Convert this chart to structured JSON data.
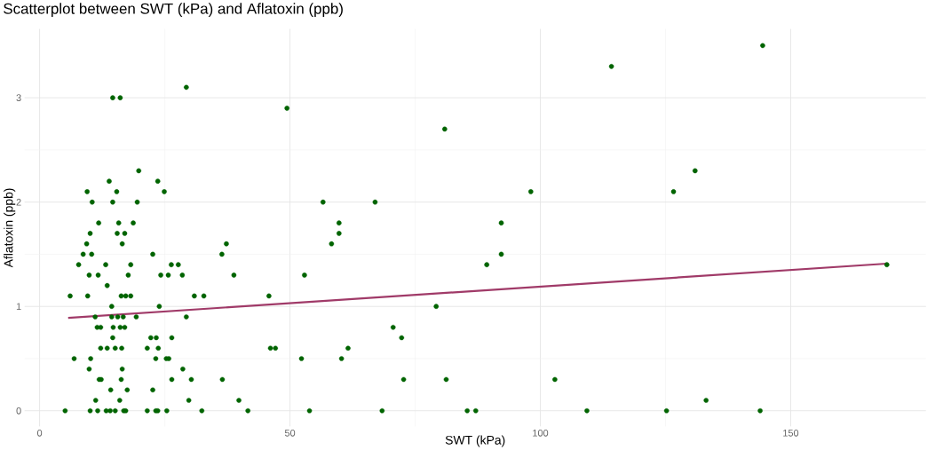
{
  "chart_data": {
    "type": "scatter",
    "title": "Scatterplot between SWT (kPa) and Aflatoxin (ppb)",
    "xlabel": "SWT (kPa)",
    "ylabel": "Aflatoxin (ppb)",
    "xlim": [
      -3,
      177
    ],
    "ylim": [
      -0.15,
      3.66
    ],
    "xticks": [
      0,
      50,
      100,
      150
    ],
    "yticks": [
      0,
      1,
      2,
      3
    ],
    "grid": true,
    "series": [
      {
        "marker": "circle",
        "color": "#006400",
        "x": [
          19.8,
          13.9,
          23.6,
          9.5,
          15.4,
          24.9,
          10.5,
          14.6,
          19.5,
          11.8,
          15.8,
          18.7,
          10.1,
          15.5,
          17.0,
          9.4,
          16.5,
          8.7,
          10.4,
          22.6,
          7.8,
          13.2,
          18.2,
          26.3,
          27.7,
          9.9,
          11.7,
          17.7,
          24.2,
          25.7,
          28.5,
          13.5,
          6.1,
          9.6,
          16.3,
          17.2,
          18.2,
          30.9,
          32.8,
          14.4,
          23.9,
          11.1,
          14.4,
          15.6,
          16.7,
          19.3,
          29.3,
          11.5,
          12.2,
          14.7,
          16.1,
          17.0,
          14.6,
          22.2,
          23.3,
          26.4,
          12.2,
          13.5,
          15.1,
          16.4,
          21.5,
          23.7,
          6.9,
          10.2,
          23.2,
          25.3,
          25.8,
          9.9,
          16.5,
          28.6,
          11.9,
          12.3,
          16.3,
          26.4,
          30.3,
          14.2,
          17.5,
          22.6,
          11.2,
          16.0,
          29.8,
          5.1,
          10.1,
          11.6,
          13.3,
          14.1,
          15.1,
          16.8,
          17.2,
          21.5,
          23.2,
          23.6,
          25.4,
          32.4,
          14.6,
          16.1,
          29.3,
          49.4,
          80.9,
          56.6,
          67.0,
          59.8,
          59.8,
          58.3,
          37.3,
          36.4,
          38.8,
          52.9,
          45.8,
          79.2,
          70.6,
          72.3,
          46.1,
          47.1,
          61.6,
          52.3,
          60.3,
          36.5,
          72.7,
          81.2,
          39.8,
          41.6,
          53.9,
          68.4,
          144.4,
          114.2,
          130.9,
          98.1,
          126.6,
          92.2,
          92.2,
          89.3,
          169.2,
          102.9,
          85.4,
          87.1,
          109.3,
          125.2,
          133.1,
          143.9
        ],
        "values": [
          2.3,
          2.2,
          2.2,
          2.1,
          2.1,
          2.1,
          2.0,
          2.0,
          2.0,
          1.8,
          1.8,
          1.8,
          1.7,
          1.7,
          1.7,
          1.6,
          1.6,
          1.5,
          1.5,
          1.5,
          1.4,
          1.4,
          1.4,
          1.4,
          1.4,
          1.3,
          1.3,
          1.3,
          1.3,
          1.3,
          1.3,
          1.2,
          1.1,
          1.1,
          1.1,
          1.1,
          1.1,
          1.1,
          1.1,
          1.0,
          1.0,
          0.9,
          0.9,
          0.9,
          0.9,
          0.9,
          0.9,
          0.8,
          0.8,
          0.8,
          0.8,
          0.8,
          0.7,
          0.7,
          0.7,
          0.7,
          0.6,
          0.6,
          0.6,
          0.6,
          0.6,
          0.6,
          0.5,
          0.5,
          0.5,
          0.5,
          0.5,
          0.4,
          0.4,
          0.4,
          0.3,
          0.3,
          0.3,
          0.3,
          0.3,
          0.2,
          0.2,
          0.2,
          0.1,
          0.1,
          0.1,
          0,
          0,
          0,
          0,
          0,
          0,
          0,
          0,
          0,
          0,
          0,
          0,
          0,
          3.0,
          3.0,
          3.1,
          2.9,
          2.7,
          2.0,
          2.0,
          1.8,
          1.7,
          1.6,
          1.6,
          1.5,
          1.3,
          1.3,
          1.1,
          1.0,
          0.8,
          0.7,
          0.6,
          0.6,
          0.6,
          0.5,
          0.5,
          0.3,
          0.3,
          0.3,
          0.1,
          0,
          0,
          0,
          3.5,
          3.3,
          2.3,
          2.1,
          2.1,
          1.8,
          1.5,
          1.4,
          1.4,
          0.3,
          0,
          0,
          0,
          0,
          0.1,
          0
        ]
      },
      {
        "type": "line",
        "marker": "none",
        "color": "#a03a68",
        "x": [
          5.7,
          169.2
        ],
        "values": [
          0.89,
          1.41
        ]
      }
    ]
  }
}
